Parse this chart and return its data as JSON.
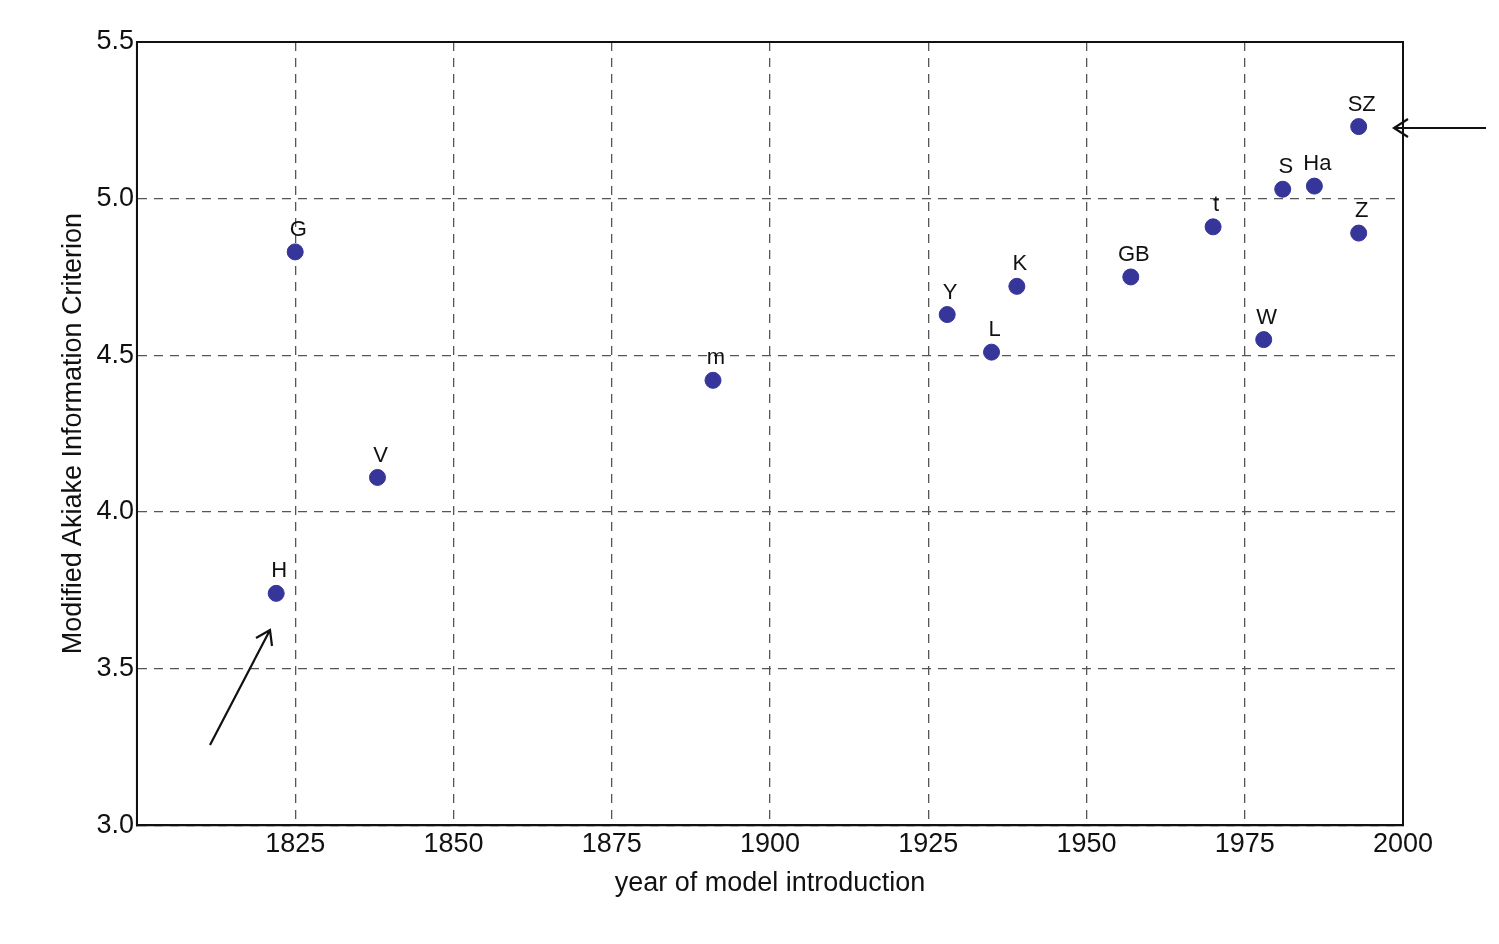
{
  "chart_data": {
    "type": "scatter",
    "xlabel": "year of model introduction",
    "ylabel": "Modified Akiake Information Criterion",
    "x": [
      1822,
      1825,
      1838,
      1891,
      1928,
      1935,
      1939,
      1957,
      1970,
      1978,
      1981,
      1986,
      1993,
      1993
    ],
    "series": [
      {
        "color": "#35359a",
        "values": [
          3.74,
          4.83,
          4.11,
          4.42,
          4.63,
          4.51,
          4.72,
          4.75,
          4.91,
          4.55,
          5.03,
          5.04,
          5.23,
          4.89
        ]
      }
    ],
    "annotations": [
      {
        "text": "H",
        "x": 1822,
        "y": 3.74
      },
      {
        "text": "G",
        "x": 1825,
        "y": 4.83
      },
      {
        "text": "V",
        "x": 1838,
        "y": 4.11
      },
      {
        "text": "m",
        "x": 1891,
        "y": 4.42
      },
      {
        "text": "Y",
        "x": 1928,
        "y": 4.63
      },
      {
        "text": "L",
        "x": 1935,
        "y": 4.51
      },
      {
        "text": "K",
        "x": 1939,
        "y": 4.72
      },
      {
        "text": "GB",
        "x": 1957,
        "y": 4.75
      },
      {
        "text": "t",
        "x": 1970,
        "y": 4.91
      },
      {
        "text": "W",
        "x": 1978,
        "y": 4.55
      },
      {
        "text": "S",
        "x": 1981,
        "y": 5.03
      },
      {
        "text": "Ha",
        "x": 1986,
        "y": 5.04
      },
      {
        "text": "SZ",
        "x": 1993,
        "y": 5.23
      },
      {
        "text": "Z",
        "x": 1993,
        "y": 4.89
      }
    ],
    "xlim": [
      1800,
      2000
    ],
    "xticks": [
      1825,
      1850,
      1875,
      1900,
      1925,
      1950,
      1975,
      2000
    ],
    "ylim": [
      3.0,
      5.5
    ],
    "yticks": [
      {
        "value": 3.0,
        "label": "3.0"
      },
      {
        "value": 3.5,
        "label": "3.5"
      },
      {
        "value": 4.0,
        "label": "4.0"
      },
      {
        "value": 4.5,
        "label": "4.5"
      },
      {
        "value": 5.0,
        "label": "5.0"
      },
      {
        "value": 5.5,
        "label": "5.5"
      }
    ],
    "grid": true,
    "marker": "circle",
    "legend": false
  }
}
